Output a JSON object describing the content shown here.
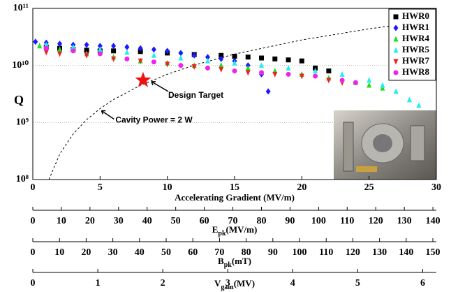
{
  "chart_data": {
    "type": "scatter",
    "xlabel": "Accelerating Gradient (MV/m)",
    "ylabel": "Q",
    "xlim": [
      0,
      30
    ],
    "xticks": [
      0,
      5,
      10,
      15,
      20,
      25,
      30
    ],
    "ylim": [
      100000000,
      100000000000
    ],
    "log_y": true,
    "yticks": [
      {
        "value": 100000000,
        "label": "10⁸"
      },
      {
        "value": 1000000000,
        "label": "10⁹"
      },
      {
        "value": 10000000000,
        "label": "10¹⁰"
      },
      {
        "value": 100000000000,
        "label": "10¹¹"
      }
    ],
    "grid": true,
    "legend": "upper right",
    "series": [
      {
        "name": "HWR0",
        "color": "#000000",
        "marker": "square",
        "x": [
          1,
          2,
          3,
          4,
          5,
          6,
          8,
          10,
          12,
          14,
          15,
          16,
          17,
          18,
          19,
          20,
          21,
          22
        ],
        "values": [
          21000000000,
          20000000000,
          19000000000,
          18500000000,
          18000000000,
          18000000000,
          17500000000,
          16500000000,
          15500000000,
          15000000000,
          14500000000,
          14000000000,
          13500000000,
          13000000000,
          12500000000,
          12000000000,
          9000000000,
          8000000000
        ]
      },
      {
        "name": "HWR1",
        "color": "#1a1aff",
        "marker": "diamond",
        "x": [
          0.2,
          1,
          2,
          3,
          4,
          5,
          6,
          7,
          8,
          9,
          10,
          11,
          12,
          13,
          14,
          15,
          16,
          17,
          17.5
        ],
        "values": [
          26000000000,
          25000000000,
          24000000000,
          23000000000,
          23000000000,
          22000000000,
          22000000000,
          21000000000,
          20000000000,
          19000000000,
          18000000000,
          16500000000,
          15000000000,
          14000000000,
          13000000000,
          12000000000,
          10000000000,
          7000000000,
          3500000000
        ]
      },
      {
        "name": "HWR4",
        "color": "#22dd22",
        "marker": "triangle",
        "x": [
          0.5,
          2,
          4,
          6,
          8,
          10,
          12,
          14,
          16,
          18,
          20,
          22,
          24,
          25,
          26
        ],
        "values": [
          22000000000,
          19000000000,
          16000000000,
          14000000000,
          12000000000,
          11000000000,
          10000000000,
          10000000000,
          9000000000,
          8000000000,
          7000000000,
          6000000000,
          5000000000,
          4500000000,
          4000000000
        ]
      },
      {
        "name": "HWR5",
        "color": "#22eeee",
        "marker": "triangle",
        "x": [
          1,
          3,
          5,
          7,
          9,
          11,
          13,
          15,
          17,
          19,
          21,
          23,
          25,
          26,
          27,
          28,
          28.7
        ],
        "values": [
          23000000000,
          21000000000,
          19000000000,
          17000000000,
          15000000000,
          13500000000,
          12000000000,
          11000000000,
          10000000000,
          9000000000,
          8000000000,
          7000000000,
          5500000000,
          4500000000,
          3500000000,
          2500000000,
          2000000000
        ]
      },
      {
        "name": "HWR7",
        "color": "#ee2222",
        "marker": "down-triangle",
        "x": [
          1,
          2,
          4,
          6,
          8,
          10,
          12,
          14,
          16,
          18,
          20,
          22,
          23
        ],
        "values": [
          17000000000,
          16000000000,
          15000000000,
          13000000000,
          12000000000,
          10500000000,
          9500000000,
          8500000000,
          7500000000,
          7000000000,
          6500000000,
          5500000000,
          5000000000
        ]
      },
      {
        "name": "HWR8",
        "color": "#ee22ee",
        "marker": "circle",
        "x": [
          1,
          3,
          5,
          7,
          9,
          11,
          13,
          15,
          17,
          19,
          21,
          23,
          24
        ],
        "values": [
          20000000000,
          18000000000,
          16000000000,
          13000000000,
          11500000000,
          10000000000,
          9000000000,
          8000000000,
          7500000000,
          7000000000,
          6500000000,
          5500000000,
          5000000000
        ]
      }
    ],
    "power_curve": {
      "label": "Cavity Power = 2 W",
      "x": [
        1.2,
        2,
        3,
        4,
        5,
        6,
        8,
        10,
        12,
        15,
        20,
        25,
        30
      ],
      "values": [
        100000000,
        280000000,
        630000000,
        1120000000,
        1750000000,
        2520000000,
        4480000000,
        7000000000,
        10100000000,
        15800000000,
        28000000000,
        43800000000,
        63000000000
      ]
    },
    "design_target": {
      "label": "Design Target",
      "x": 8.2,
      "y": 5500000000,
      "color": "#ee1111"
    },
    "extra_axes": [
      {
        "symbol": "E",
        "subscript": "pk",
        "unit": "(MV/m)",
        "xlim": [
          0,
          141.2
        ],
        "xticks": [
          0,
          10,
          20,
          30,
          40,
          50,
          60,
          70,
          80,
          90,
          100,
          110,
          120,
          130,
          140
        ]
      },
      {
        "symbol": "B",
        "subscript": "pk",
        "unit": "(mT)",
        "xlim": [
          0,
          151.3
        ],
        "xticks": [
          0,
          10,
          20,
          30,
          40,
          50,
          60,
          70,
          80,
          90,
          100,
          110,
          120,
          130,
          140,
          150
        ]
      },
      {
        "symbol": "V",
        "subscript": "gain",
        "unit": "(MV)",
        "xlim": [
          0,
          6.21
        ],
        "xticks": [
          0,
          1,
          2,
          3,
          4,
          5,
          6
        ]
      }
    ]
  }
}
